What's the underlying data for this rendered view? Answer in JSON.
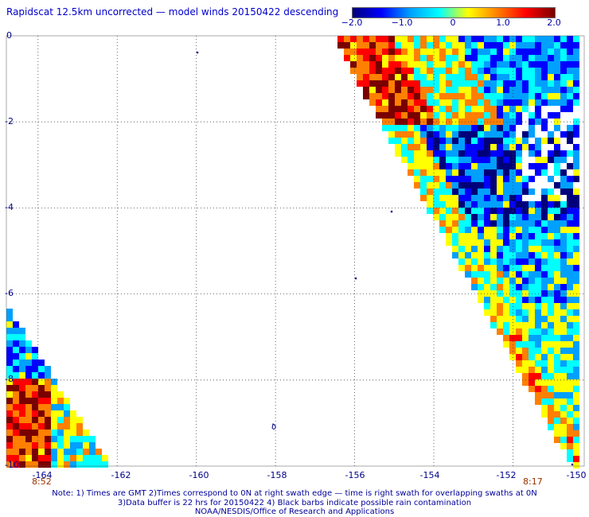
{
  "title": "Rapidscat 12.5km uncorrected — model winds 20150422 descending",
  "colorbar": {
    "labels": [
      "−2.0",
      "−1.0",
      "0",
      "1.0",
      "2.0"
    ],
    "min": -2.0,
    "max": 2.0,
    "colors": [
      "#00007a",
      "#0000ff",
      "#00a0ff",
      "#00ffff",
      "#ffff00",
      "#ff8000",
      "#ff0000",
      "#7a0000"
    ]
  },
  "map": {
    "lon_labels": [
      "-164",
      "-162",
      "-160",
      "-158",
      "-156",
      "-154",
      "-152",
      "-150"
    ],
    "lat_labels": [
      "0",
      "-2",
      "-4",
      "-6",
      "-8",
      "-10"
    ],
    "lon_values": [
      -164,
      -162,
      -160,
      -158,
      -156,
      -154,
      -152,
      -150
    ],
    "lat_values": [
      0,
      -2,
      -4,
      -6,
      -8,
      -10
    ],
    "lon_range": [
      -164.8,
      -150.2
    ],
    "lat_range": [
      -10.0,
      0.0
    ],
    "swath_times": [
      "8:52",
      "8:17"
    ]
  },
  "notes": [
    "Note: 1) Times are GMT 2)Times correspond to 0N at right swath edge — time is right swath for overlapping swaths at 0N",
    "3)Data buffer is 22 hrs for 20150422 4) Black barbs indicate possible rain contamination",
    "NOAA/NESDIS/Office of Research and Applications"
  ]
}
